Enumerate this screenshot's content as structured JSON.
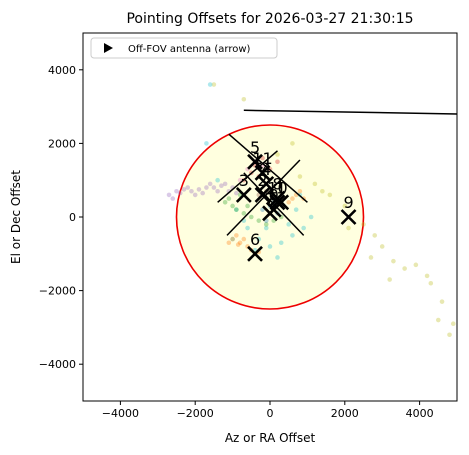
{
  "chart_data": {
    "type": "scatter",
    "title": "Pointing Offsets for 2026-03-27 21:30:15",
    "xlabel": "Az or RA Offset",
    "ylabel": "El or Dec Offset",
    "xlim": [
      -5000,
      5000
    ],
    "ylim": [
      -5000,
      5000
    ],
    "xticks": [
      -4000,
      -2000,
      0,
      2000,
      4000
    ],
    "yticks": [
      -4000,
      -2000,
      0,
      2000,
      4000
    ],
    "xtick_labels": [
      "−4000",
      "−2000",
      "0",
      "2000",
      "4000"
    ],
    "ytick_labels": [
      "−4000",
      "−2000",
      "0",
      "2000",
      "4000"
    ],
    "grid": false,
    "legend": {
      "placement": "top-left",
      "entries": [
        "Off-FOV antenna (arrow)"
      ]
    },
    "fov_circle": {
      "center": [
        0,
        0
      ],
      "radius": 2500,
      "edge_color": "#ee0000",
      "fill_color": "#ffffdf"
    },
    "scatter_series": [
      {
        "color": "#9467bd",
        "points": [
          [
            -2700,
            600
          ],
          [
            -2500,
            700
          ],
          [
            -2300,
            750
          ],
          [
            -2100,
            700
          ],
          [
            -1900,
            750
          ],
          [
            -1700,
            800
          ],
          [
            -1500,
            800
          ],
          [
            -1300,
            850
          ],
          [
            -1100,
            700
          ],
          [
            -2600,
            500
          ],
          [
            -2400,
            650
          ],
          [
            -2200,
            800
          ],
          [
            -1800,
            650
          ],
          [
            -1600,
            900
          ],
          [
            -1400,
            700
          ],
          [
            -1200,
            900
          ],
          [
            -2000,
            600
          ],
          [
            -1000,
            800
          ],
          [
            -900,
            650
          ]
        ]
      },
      {
        "color": "#bcbd22",
        "points": [
          [
            -1500,
            3600
          ],
          [
            600,
            2000
          ],
          [
            1200,
            900
          ],
          [
            1600,
            600
          ],
          [
            2000,
            300
          ],
          [
            2500,
            -200
          ],
          [
            2800,
            -500
          ],
          [
            3000,
            -800
          ],
          [
            3300,
            -1200
          ],
          [
            3600,
            -1400
          ],
          [
            4200,
            -1600
          ],
          [
            4600,
            -2300
          ],
          [
            4900,
            -2900
          ],
          [
            4500,
            -2800
          ],
          [
            3200,
            -1700
          ],
          [
            2100,
            -300
          ],
          [
            1400,
            700
          ],
          [
            800,
            1100
          ],
          [
            200,
            1700
          ],
          [
            3900,
            -1300
          ],
          [
            2700,
            -1100
          ],
          [
            -700,
            3200
          ],
          [
            4800,
            -3200
          ],
          [
            4300,
            -1800
          ]
        ]
      },
      {
        "color": "#17becf",
        "points": [
          [
            -1700,
            2000
          ],
          [
            -1400,
            1000
          ],
          [
            -900,
            200
          ],
          [
            -700,
            -100
          ],
          [
            -600,
            -300
          ],
          [
            -300,
            -600
          ],
          [
            0,
            -800
          ],
          [
            300,
            -700
          ],
          [
            600,
            -500
          ],
          [
            900,
            -300
          ],
          [
            1100,
            0
          ],
          [
            700,
            200
          ],
          [
            300,
            400
          ],
          [
            -100,
            -300
          ],
          [
            500,
            -200
          ],
          [
            -400,
            -900
          ],
          [
            200,
            -1100
          ],
          [
            -1000,
            -600
          ],
          [
            800,
            600
          ],
          [
            -1600,
            3600
          ]
        ]
      },
      {
        "color": "#ff7f0e",
        "points": [
          [
            -1000,
            -600
          ],
          [
            -900,
            -500
          ],
          [
            -800,
            -700
          ],
          [
            -700,
            -600
          ],
          [
            -600,
            -800
          ],
          [
            -500,
            -900
          ],
          [
            -400,
            -1000
          ],
          [
            -300,
            -950
          ],
          [
            500,
            400
          ],
          [
            600,
            500
          ],
          [
            700,
            600
          ],
          [
            800,
            700
          ],
          [
            900,
            500
          ],
          [
            -1100,
            -700
          ],
          [
            -850,
            -750
          ]
        ]
      },
      {
        "color": "#2ca02c",
        "points": [
          [
            -1200,
            400
          ],
          [
            -1000,
            300
          ],
          [
            -900,
            200
          ],
          [
            -700,
            100
          ],
          [
            -500,
            0
          ],
          [
            -300,
            -100
          ],
          [
            -100,
            -200
          ],
          [
            100,
            -100
          ],
          [
            300,
            0
          ],
          [
            -1100,
            500
          ],
          [
            -800,
            600
          ],
          [
            -600,
            300
          ]
        ]
      },
      {
        "color": "#d62728",
        "points": [
          [
            -700,
            1000
          ],
          [
            -500,
            1200
          ],
          [
            -400,
            1400
          ],
          [
            -200,
            1600
          ],
          [
            0,
            1300
          ],
          [
            200,
            1500
          ],
          [
            -300,
            1100
          ]
        ]
      },
      {
        "color": "#e377c2",
        "points": [
          [
            -600,
            1300
          ],
          [
            -400,
            1500
          ],
          [
            -200,
            1400
          ],
          [
            -800,
            1000
          ]
        ]
      },
      {
        "color": "#1f77b4",
        "points": [
          [
            -200,
            200
          ],
          [
            0,
            300
          ],
          [
            200,
            100
          ],
          [
            -100,
            -100
          ],
          [
            100,
            400
          ]
        ]
      },
      {
        "color": "#8c564b",
        "points": [
          [
            -300,
            600
          ],
          [
            -100,
            700
          ],
          [
            100,
            500
          ]
        ]
      }
    ],
    "antennas": [
      {
        "label": "0",
        "x": 100,
        "y": 200
      },
      {
        "label": "1",
        "x": 300,
        "y": 400
      },
      {
        "label": "2",
        "x": -200,
        "y": 600
      },
      {
        "label": "3",
        "x": -700,
        "y": 600
      },
      {
        "label": "4",
        "x": -100,
        "y": 900
      },
      {
        "label": "5",
        "x": -400,
        "y": 1500
      },
      {
        "label": "6",
        "x": -400,
        "y": -1000
      },
      {
        "label": "7",
        "x": 0,
        "y": 100
      },
      {
        "label": "8",
        "x": 200,
        "y": 500
      },
      {
        "label": "9",
        "x": 2100,
        "y": 0
      },
      {
        "label": "10",
        "x": 200,
        "y": 400
      },
      {
        "label": "11",
        "x": -200,
        "y": 1200
      }
    ],
    "lines": [
      [
        [
          -1100,
          2250
        ],
        [
          1000,
          400
        ]
      ],
      [
        [
          -1150,
          -500
        ],
        [
          800,
          1550
        ]
      ],
      [
        [
          -700,
          1200
        ],
        [
          900,
          -500
        ]
      ],
      [
        [
          -1400,
          400
        ],
        [
          200,
          1800
        ]
      ],
      [
        [
          -700,
          2900
        ],
        [
          5000,
          2800
        ]
      ]
    ]
  }
}
